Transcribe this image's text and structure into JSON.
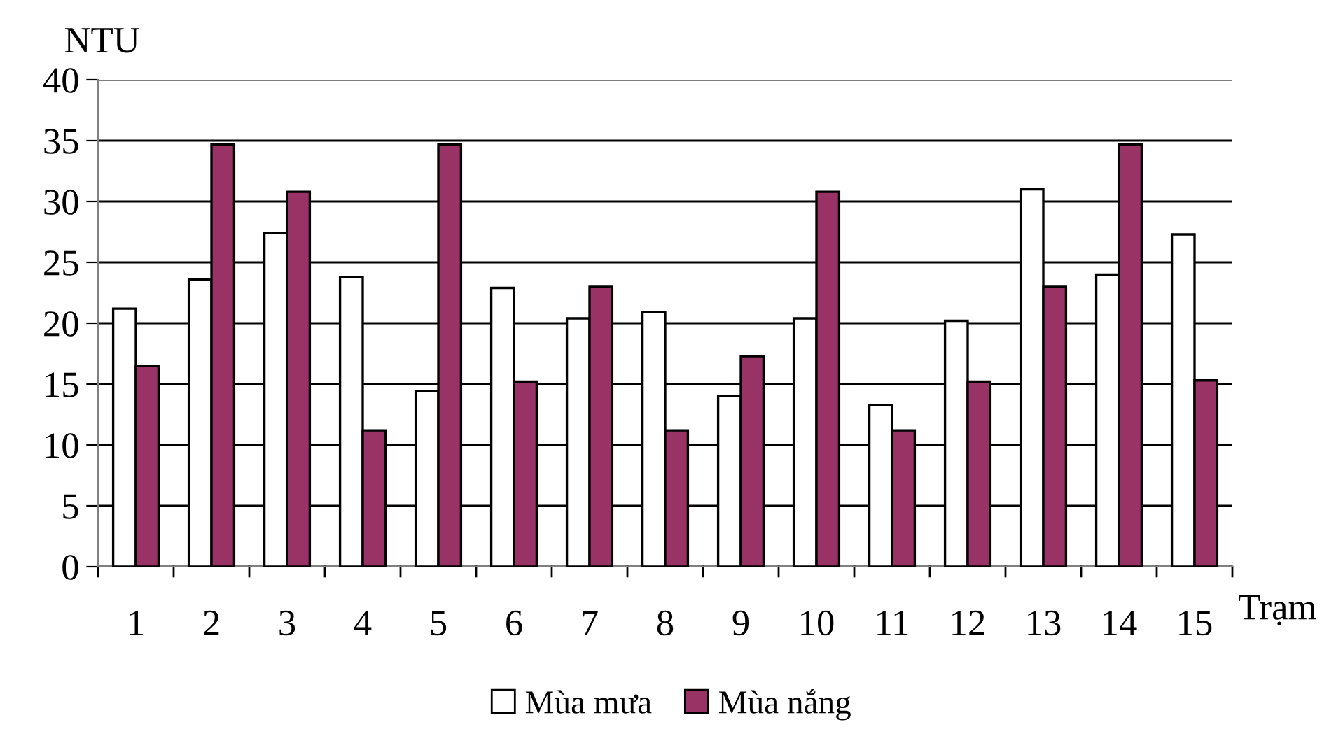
{
  "chart_data": {
    "type": "bar",
    "ylabel": "NTU",
    "xlabel": "Trạm",
    "categories": [
      "1",
      "2",
      "3",
      "4",
      "5",
      "6",
      "7",
      "8",
      "9",
      "10",
      "11",
      "12",
      "13",
      "14",
      "15"
    ],
    "series": [
      {
        "name": "Mùa mưa",
        "color": "#ffffff",
        "values": [
          21.2,
          23.6,
          27.4,
          23.8,
          14.4,
          22.9,
          20.4,
          20.9,
          14.0,
          20.4,
          13.3,
          20.2,
          31.0,
          24.0,
          27.3
        ]
      },
      {
        "name": "Mùa nắng",
        "color": "#993366",
        "values": [
          16.5,
          34.7,
          30.8,
          11.2,
          34.7,
          15.2,
          23.0,
          11.2,
          17.3,
          30.8,
          11.2,
          15.2,
          23.0,
          34.7,
          15.3
        ]
      }
    ],
    "ylim": [
      0,
      40
    ],
    "yticks": [
      0,
      5,
      10,
      15,
      20,
      25,
      30,
      35,
      40
    ],
    "grid": "y",
    "legend": "bottom"
  }
}
